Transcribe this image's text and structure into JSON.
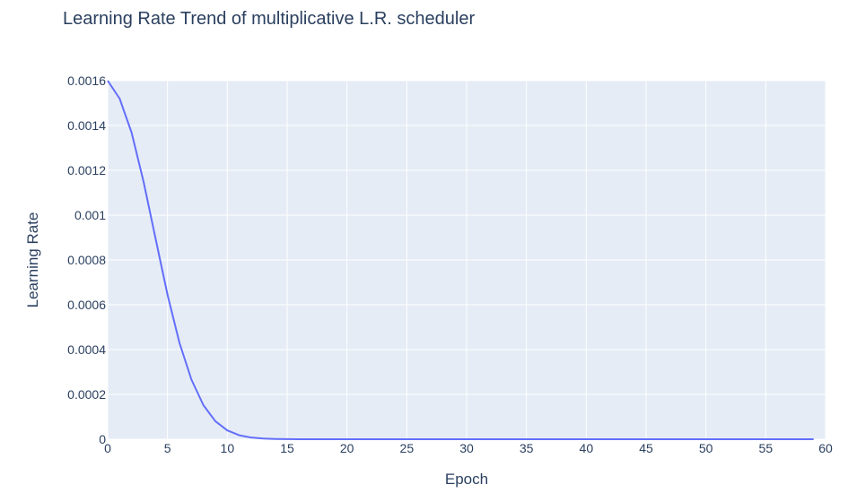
{
  "chart_data": {
    "type": "line",
    "title": "Learning Rate Trend of multiplicative L.R. scheduler",
    "xlabel": "Epoch",
    "ylabel": "Learning Rate",
    "xlim": [
      0,
      60
    ],
    "ylim": [
      0,
      0.0016
    ],
    "x_ticks": [
      "0",
      "5",
      "10",
      "15",
      "20",
      "25",
      "30",
      "35",
      "40",
      "45",
      "50",
      "55",
      "60"
    ],
    "y_ticks": [
      "0",
      "0.0002",
      "0.0004",
      "0.0006",
      "0.0008",
      "0.001",
      "0.0012",
      "0.0014",
      "0.0016"
    ],
    "grid": true,
    "colors": {
      "line": "#636efa",
      "plot_bg": "#e5ecf6",
      "grid": "#ffffff",
      "text": "#2a3f5f"
    },
    "series": [
      {
        "x": [
          0,
          1,
          2,
          3,
          4,
          5,
          6,
          7,
          8,
          9,
          10,
          11,
          12,
          13,
          14,
          15,
          16,
          17,
          18,
          19,
          20,
          21,
          22,
          23,
          24,
          25,
          26,
          27,
          28,
          29,
          30,
          31,
          32,
          33,
          34,
          35,
          36,
          37,
          38,
          39,
          40,
          41,
          42,
          43,
          44,
          45,
          46,
          47,
          48,
          49,
          50,
          51,
          52,
          53,
          54,
          55,
          56,
          57,
          58,
          59
        ],
        "values": [
          0.0016,
          0.00152,
          0.001368,
          0.001149,
          0.000896,
          0.000645,
          0.00043,
          0.000266,
          0.000152,
          8.02e-05,
          3.92e-05,
          1.76e-05,
          7.3e-06,
          2.8e-06,
          1e-06,
          3e-07,
          1e-07,
          0,
          0,
          0,
          0,
          0,
          0,
          0,
          0,
          0,
          0,
          0,
          0,
          0,
          0,
          0,
          0,
          0,
          0,
          0,
          0,
          0,
          0,
          0,
          0,
          0,
          0,
          0,
          0,
          0,
          0,
          0,
          0,
          0,
          0,
          0,
          0,
          0,
          0,
          0,
          0,
          0,
          0,
          0
        ]
      }
    ]
  }
}
